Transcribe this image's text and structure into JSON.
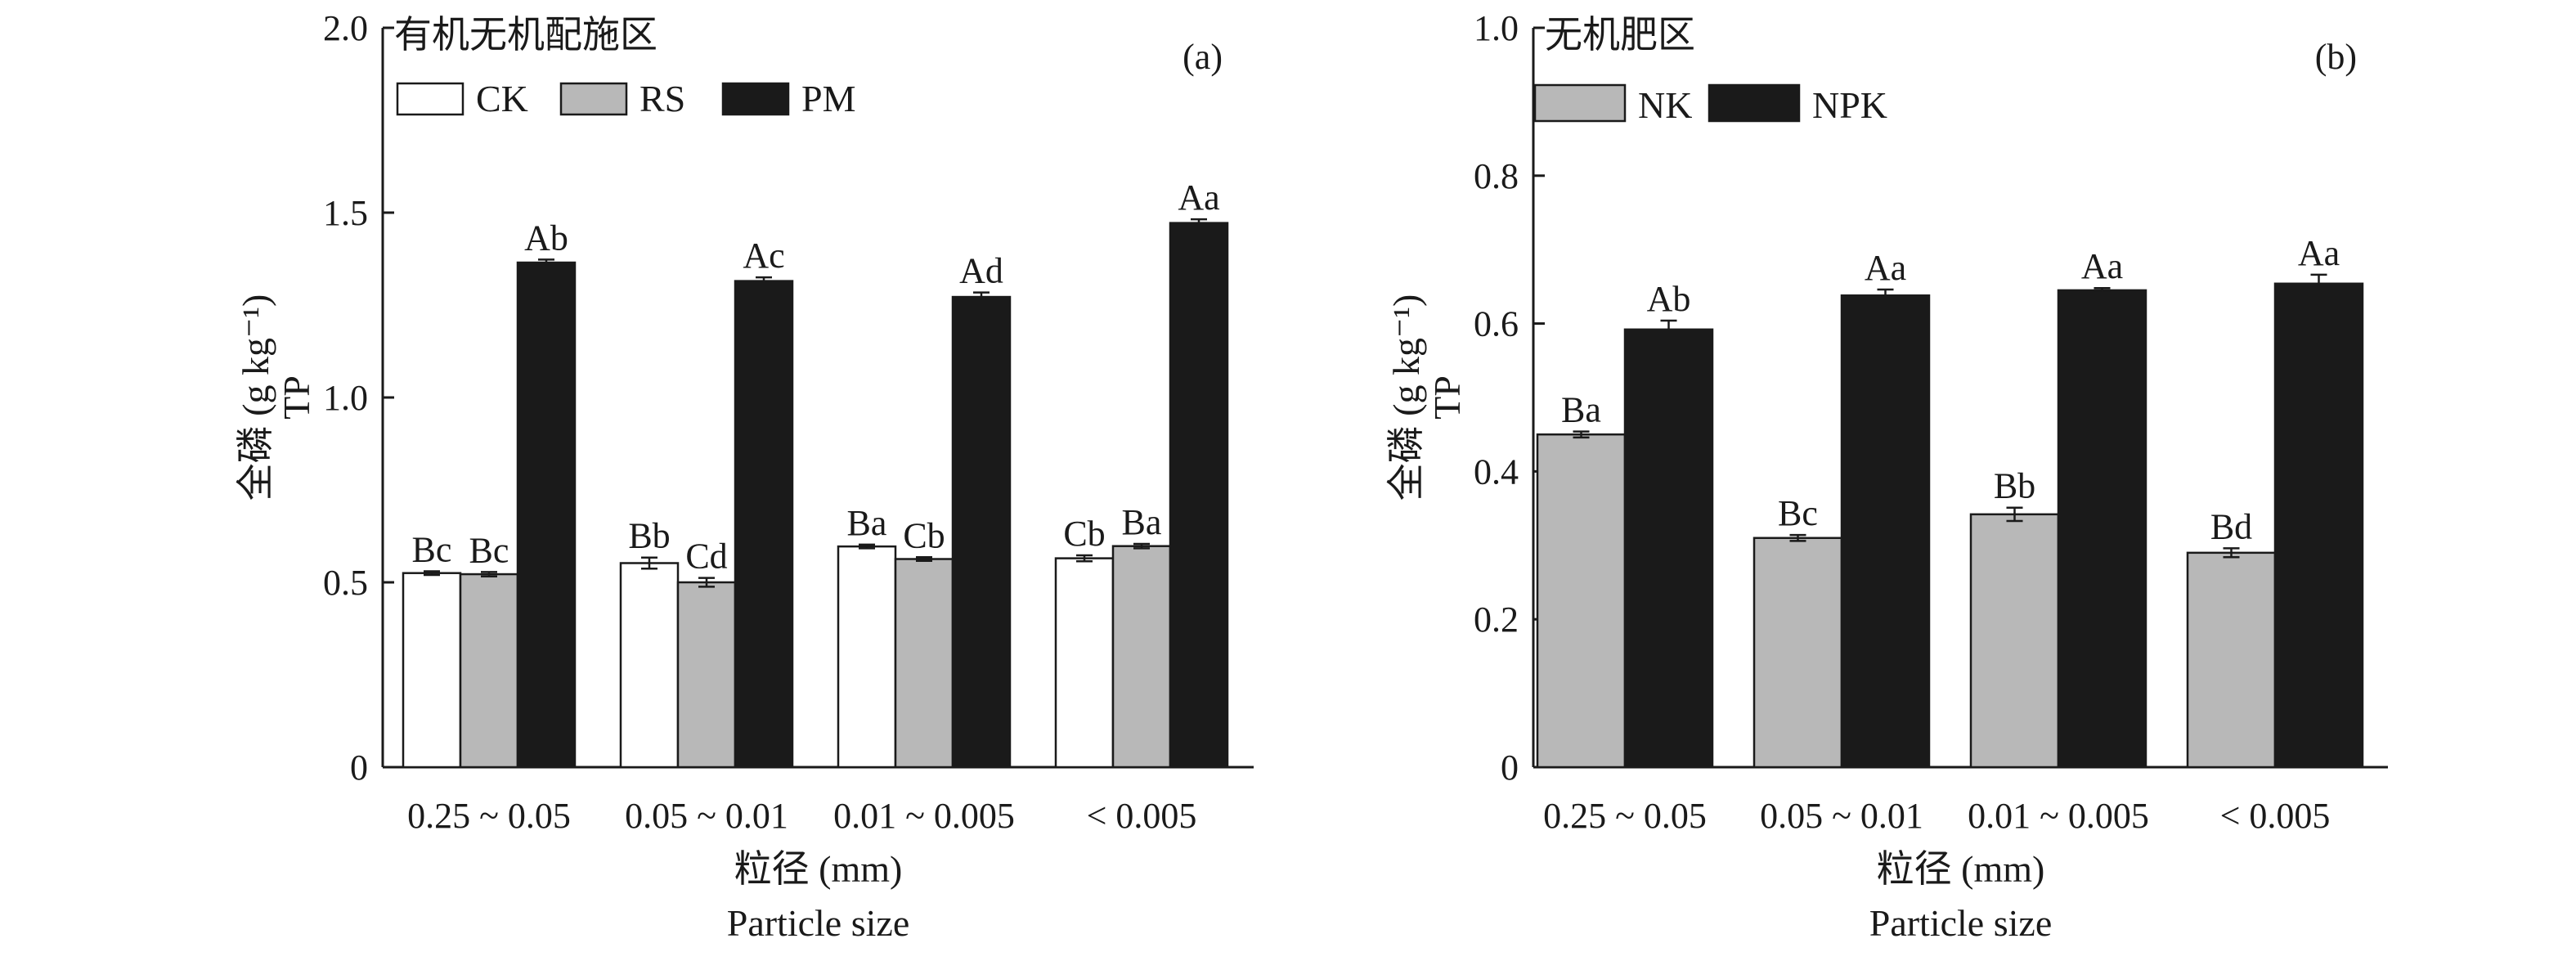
{
  "chart_data": [
    {
      "id": "a",
      "type": "bar",
      "title": "有机无机配施区",
      "panel_label": "(a)",
      "ylabel_zh": "全磷 (g kg⁻¹)",
      "ylabel_en": "TP",
      "xlabel_zh": "粒径 (mm)",
      "xlabel_en": "Particle size",
      "ylim": [
        0,
        2.0
      ],
      "yticks": [
        0,
        0.5,
        1.0,
        1.5,
        2.0
      ],
      "ytick_labels": [
        "0",
        "0.5",
        "1.0",
        "1.5",
        "2.0"
      ],
      "categories": [
        "0.25 ~ 0.05",
        "0.05 ~ 0.01",
        "0.01 ~ 0.005",
        "< 0.005"
      ],
      "legend_position": "top-left",
      "series": [
        {
          "name": "CK",
          "color": "#ffffff",
          "values": [
            0.525,
            0.552,
            0.597,
            0.565
          ],
          "errors": [
            0.005,
            0.015,
            0.005,
            0.008
          ],
          "labels": [
            "Bc",
            "Bb",
            "Ba",
            "Cb"
          ]
        },
        {
          "name": "RS",
          "color": "#b8b8b8",
          "values": [
            0.522,
            0.5,
            0.563,
            0.598
          ],
          "errors": [
            0.006,
            0.012,
            0.005,
            0.006
          ],
          "labels": [
            "Bc",
            "Cd",
            "Cb",
            "Ba"
          ]
        },
        {
          "name": "PM",
          "color": "#1a1a1a",
          "values": [
            1.365,
            1.315,
            1.272,
            1.472
          ],
          "errors": [
            0.008,
            0.01,
            0.012,
            0.01
          ],
          "labels": [
            "Ab",
            "Ac",
            "Ad",
            "Aa"
          ]
        }
      ]
    },
    {
      "id": "b",
      "type": "bar",
      "title": "无机肥区",
      "panel_label": "(b)",
      "ylabel_zh": "全磷 (g kg⁻¹)",
      "ylabel_en": "TP",
      "xlabel_zh": "粒径 (mm)",
      "xlabel_en": "Particle size",
      "ylim": [
        0,
        1.0
      ],
      "yticks": [
        0,
        0.2,
        0.4,
        0.6,
        0.8,
        1.0
      ],
      "ytick_labels": [
        "0",
        "0.2",
        "0.4",
        "0.6",
        "0.8",
        "1.0"
      ],
      "categories": [
        "0.25 ~ 0.05",
        "0.05 ~ 0.01",
        "0.01 ~ 0.005",
        "< 0.005"
      ],
      "legend_position": "top-left",
      "series": [
        {
          "name": "NK",
          "color": "#b8b8b8",
          "values": [
            0.45,
            0.31,
            0.342,
            0.29
          ],
          "errors": [
            0.004,
            0.004,
            0.009,
            0.006
          ],
          "labels": [
            "Ba",
            "Bc",
            "Bb",
            "Bd"
          ]
        },
        {
          "name": "NPK",
          "color": "#1a1a1a",
          "values": [
            0.592,
            0.638,
            0.645,
            0.654
          ],
          "errors": [
            0.012,
            0.008,
            0.003,
            0.012
          ],
          "labels": [
            "Ab",
            "Aa",
            "Aa",
            "Aa"
          ]
        }
      ]
    }
  ]
}
